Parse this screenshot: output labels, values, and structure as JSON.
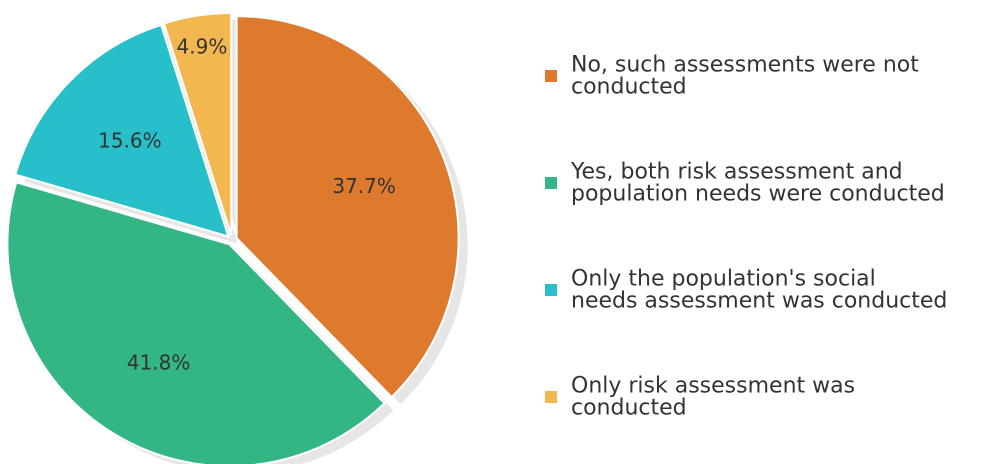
{
  "chart_data": {
    "type": "pie",
    "title": "",
    "slices": [
      {
        "label": "No, such assessments were not conducted",
        "label_lines": [
          "No, such assessments were not",
          "conducted"
        ],
        "value": 37.7,
        "value_label": "37.7%",
        "color": "#de7a2e"
      },
      {
        "label": "Yes, both risk assessment and population needs were conducted",
        "label_lines": [
          "Yes, both risk assessment and",
          "population needs were conducted"
        ],
        "value": 41.8,
        "value_label": "41.8%",
        "color": "#33b584"
      },
      {
        "label": "Only the population's social needs assessment was conducted",
        "label_lines": [
          "Only the population's social",
          "needs assessment was conducted"
        ],
        "value": 15.6,
        "value_label": "15.6%",
        "color": "#27bfc9"
      },
      {
        "label": "Only risk assessment was conducted",
        "label_lines": [
          "Only risk assessment was",
          "conducted"
        ],
        "value": 4.9,
        "value_label": "4.9%",
        "color": "#f2b84f"
      }
    ],
    "start": "top",
    "direction": "clockwise",
    "exploded": true,
    "shadow": true,
    "legend_position": "right"
  }
}
